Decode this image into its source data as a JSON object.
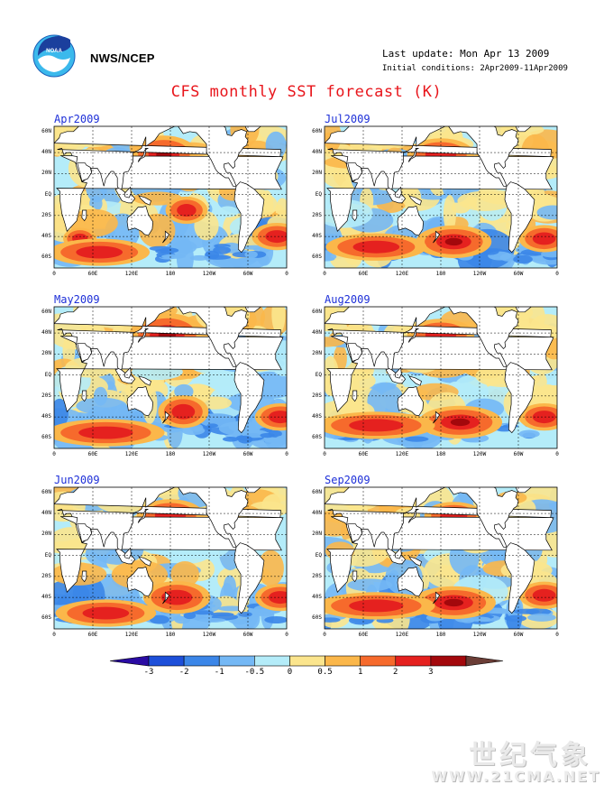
{
  "header": {
    "org": "NWS/NCEP",
    "last_update": "Last update: Mon Apr 13 2009",
    "initial_conditions": "Initial conditions: 2Apr2009-11Apr2009",
    "title": "CFS monthly SST forecast (K)"
  },
  "logo": {
    "text": "NOAA"
  },
  "panels": [
    {
      "label": "Apr2009"
    },
    {
      "label": "May2009"
    },
    {
      "label": "Jun2009"
    },
    {
      "label": "Jul2009"
    },
    {
      "label": "Aug2009"
    },
    {
      "label": "Sep2009"
    }
  ],
  "axes": {
    "y_ticks": [
      "60N",
      "40N",
      "20N",
      "EQ",
      "20S",
      "40S",
      "60S"
    ],
    "x_ticks": [
      "0",
      "60E",
      "120E",
      "180",
      "120W",
      "60W",
      "0"
    ]
  },
  "colorbar": {
    "ticks": [
      "-3",
      "-2",
      "-1",
      "-0.5",
      "0",
      "0.5",
      "1",
      "2",
      "3"
    ],
    "colors": [
      "#2a0ba3",
      "#1d4fd9",
      "#3b86e8",
      "#74b8f5",
      "#b4ecf9",
      "#fbe58d",
      "#fbb74a",
      "#f66a2c",
      "#e5211f",
      "#a3080c",
      "#6b3d36"
    ]
  },
  "watermark": {
    "line1": "世纪气象",
    "line2": "WWW.21CMA.NET"
  }
}
